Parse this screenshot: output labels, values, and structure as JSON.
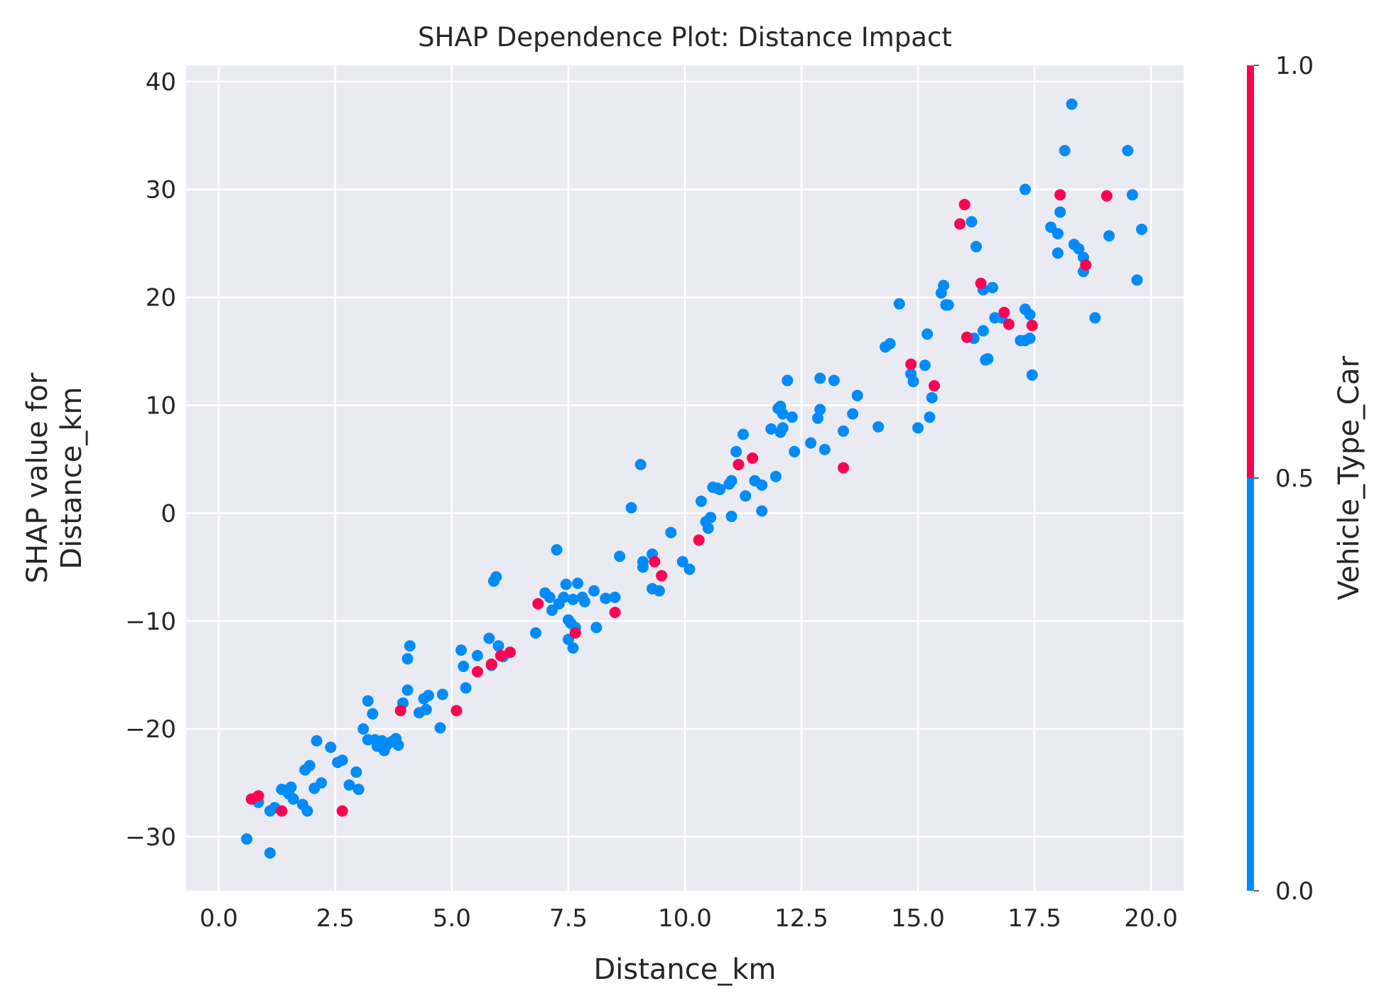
{
  "chart_data": {
    "type": "scatter",
    "title": "SHAP Dependence Plot: Distance Impact",
    "xlabel": "Distance_km",
    "ylabel_lines": [
      "SHAP value for",
      "Distance_km"
    ],
    "xlim": [
      -0.7,
      20.7
    ],
    "ylim": [
      -35,
      41.5
    ],
    "xticks": [
      0.0,
      2.5,
      5.0,
      7.5,
      10.0,
      12.5,
      15.0,
      17.5,
      20.0
    ],
    "xtick_labels": [
      "0.0",
      "2.5",
      "5.0",
      "7.5",
      "10.0",
      "12.5",
      "15.0",
      "17.5",
      "20.0"
    ],
    "yticks": [
      -30,
      -20,
      -10,
      0,
      10,
      20,
      30,
      40
    ],
    "ytick_labels": [
      "−30",
      "−20",
      "−10",
      "0",
      "10",
      "20",
      "30",
      "40"
    ],
    "grid": true,
    "colorbar": {
      "label": "Vehicle_Type_Car",
      "ticks": [
        0.0,
        0.5,
        1.0
      ],
      "tick_labels": [
        "0.0",
        "0.5",
        "1.0"
      ],
      "low_color": "#008bfb",
      "high_color": "#ff0052"
    },
    "colors": {
      "plot_background": "#eaeaf2",
      "grid": "#ffffff",
      "point_car": "#ff0052",
      "point_other": "#008bfb"
    },
    "series": [
      {
        "color_value": 0,
        "points": [
          [
            0.6,
            -30.2
          ],
          [
            1.1,
            -31.5
          ],
          [
            0.85,
            -26.8
          ],
          [
            1.1,
            -27.6
          ],
          [
            1.2,
            -27.3
          ],
          [
            1.35,
            -25.6
          ],
          [
            1.5,
            -26.0
          ],
          [
            1.55,
            -25.4
          ],
          [
            1.6,
            -26.5
          ],
          [
            1.8,
            -27.0
          ],
          [
            1.85,
            -23.8
          ],
          [
            1.95,
            -23.4
          ],
          [
            1.9,
            -27.6
          ],
          [
            2.05,
            -25.5
          ],
          [
            2.1,
            -21.1
          ],
          [
            2.2,
            -25.0
          ],
          [
            2.4,
            -21.7
          ],
          [
            2.55,
            -23.1
          ],
          [
            2.65,
            -22.9
          ],
          [
            2.8,
            -25.2
          ],
          [
            2.95,
            -24.0
          ],
          [
            3.0,
            -25.6
          ],
          [
            3.1,
            -20.0
          ],
          [
            3.2,
            -17.4
          ],
          [
            3.2,
            -21.0
          ],
          [
            3.3,
            -18.6
          ],
          [
            3.35,
            -21.0
          ],
          [
            3.4,
            -21.6
          ],
          [
            3.5,
            -21.1
          ],
          [
            3.55,
            -22.0
          ],
          [
            3.6,
            -21.5
          ],
          [
            3.7,
            -21.2
          ],
          [
            3.8,
            -20.9
          ],
          [
            3.85,
            -21.5
          ],
          [
            3.95,
            -17.6
          ],
          [
            4.05,
            -13.5
          ],
          [
            4.1,
            -12.3
          ],
          [
            4.05,
            -16.4
          ],
          [
            4.3,
            -18.5
          ],
          [
            4.4,
            -17.2
          ],
          [
            4.45,
            -18.2
          ],
          [
            4.5,
            -16.9
          ],
          [
            4.75,
            -19.9
          ],
          [
            4.8,
            -16.8
          ],
          [
            5.2,
            -12.7
          ],
          [
            5.25,
            -14.2
          ],
          [
            5.3,
            -16.2
          ],
          [
            5.55,
            -13.2
          ],
          [
            5.8,
            -11.6
          ],
          [
            5.85,
            -14.1
          ],
          [
            5.9,
            -6.3
          ],
          [
            5.95,
            -5.9
          ],
          [
            6.0,
            -12.3
          ],
          [
            6.1,
            -13.3
          ],
          [
            6.8,
            -11.1
          ],
          [
            7.0,
            -7.4
          ],
          [
            7.1,
            -7.8
          ],
          [
            7.15,
            -9.0
          ],
          [
            7.25,
            -3.4
          ],
          [
            7.3,
            -8.4
          ],
          [
            7.4,
            -7.8
          ],
          [
            7.45,
            -6.6
          ],
          [
            7.5,
            -9.9
          ],
          [
            7.55,
            -10.2
          ],
          [
            7.5,
            -11.7
          ],
          [
            7.6,
            -12.5
          ],
          [
            7.6,
            -8.0
          ],
          [
            7.65,
            -10.6
          ],
          [
            7.7,
            -6.5
          ],
          [
            7.8,
            -7.8
          ],
          [
            7.85,
            -8.2
          ],
          [
            8.05,
            -7.2
          ],
          [
            8.1,
            -10.6
          ],
          [
            8.3,
            -7.9
          ],
          [
            8.5,
            -7.8
          ],
          [
            8.6,
            -4.0
          ],
          [
            8.85,
            0.5
          ],
          [
            9.05,
            4.5
          ],
          [
            9.1,
            -4.5
          ],
          [
            9.1,
            -5.0
          ],
          [
            9.3,
            -3.8
          ],
          [
            9.3,
            -7.0
          ],
          [
            9.45,
            -7.2
          ],
          [
            9.7,
            -1.8
          ],
          [
            9.95,
            -4.5
          ],
          [
            10.1,
            -5.2
          ],
          [
            10.35,
            1.1
          ],
          [
            10.45,
            -0.8
          ],
          [
            10.5,
            -1.4
          ],
          [
            10.55,
            -0.4
          ],
          [
            10.6,
            2.4
          ],
          [
            10.7,
            2.3
          ],
          [
            10.75,
            2.2
          ],
          [
            11.0,
            3.0
          ],
          [
            10.95,
            2.7
          ],
          [
            11.0,
            -0.3
          ],
          [
            11.1,
            5.7
          ],
          [
            11.25,
            7.3
          ],
          [
            11.3,
            1.6
          ],
          [
            11.5,
            3.0
          ],
          [
            11.65,
            2.6
          ],
          [
            11.65,
            0.2
          ],
          [
            11.85,
            7.8
          ],
          [
            11.95,
            3.4
          ],
          [
            12.0,
            9.7
          ],
          [
            12.05,
            9.9
          ],
          [
            12.05,
            7.5
          ],
          [
            12.1,
            7.9
          ],
          [
            12.1,
            9.2
          ],
          [
            12.2,
            12.3
          ],
          [
            12.3,
            8.9
          ],
          [
            12.35,
            5.7
          ],
          [
            12.7,
            6.5
          ],
          [
            12.85,
            8.8
          ],
          [
            12.9,
            12.5
          ],
          [
            12.9,
            9.6
          ],
          [
            13.0,
            5.9
          ],
          [
            13.2,
            12.3
          ],
          [
            13.4,
            7.6
          ],
          [
            13.6,
            9.2
          ],
          [
            13.7,
            10.9
          ],
          [
            14.15,
            8.0
          ],
          [
            14.3,
            15.4
          ],
          [
            14.4,
            15.7
          ],
          [
            14.6,
            19.4
          ],
          [
            14.85,
            12.9
          ],
          [
            14.9,
            12.2
          ],
          [
            15.0,
            7.9
          ],
          [
            15.15,
            13.7
          ],
          [
            15.2,
            16.6
          ],
          [
            15.25,
            8.9
          ],
          [
            15.3,
            10.7
          ],
          [
            15.5,
            20.4
          ],
          [
            15.55,
            21.1
          ],
          [
            15.6,
            19.3
          ],
          [
            15.65,
            19.3
          ],
          [
            16.15,
            27.0
          ],
          [
            16.2,
            16.2
          ],
          [
            16.25,
            24.7
          ],
          [
            16.4,
            16.9
          ],
          [
            16.4,
            20.7
          ],
          [
            16.45,
            14.2
          ],
          [
            16.5,
            14.3
          ],
          [
            16.6,
            20.9
          ],
          [
            16.65,
            18.1
          ],
          [
            16.8,
            18.1
          ],
          [
            17.2,
            16.0
          ],
          [
            17.3,
            16.0
          ],
          [
            17.3,
            18.9
          ],
          [
            17.3,
            30.0
          ],
          [
            17.4,
            16.2
          ],
          [
            17.4,
            18.4
          ],
          [
            17.45,
            12.8
          ],
          [
            17.85,
            26.5
          ],
          [
            18.0,
            24.1
          ],
          [
            18.0,
            25.9
          ],
          [
            18.05,
            27.9
          ],
          [
            18.15,
            33.6
          ],
          [
            18.3,
            37.9
          ],
          [
            18.35,
            24.9
          ],
          [
            18.45,
            24.5
          ],
          [
            18.55,
            23.7
          ],
          [
            18.55,
            22.4
          ],
          [
            18.8,
            18.1
          ],
          [
            19.1,
            25.7
          ],
          [
            19.5,
            33.6
          ],
          [
            19.6,
            29.5
          ],
          [
            19.7,
            21.6
          ],
          [
            19.8,
            26.3
          ]
        ]
      },
      {
        "color_value": 1,
        "points": [
          [
            0.7,
            -26.5
          ],
          [
            0.85,
            -26.2
          ],
          [
            1.35,
            -27.6
          ],
          [
            2.65,
            -27.6
          ],
          [
            3.9,
            -18.3
          ],
          [
            5.1,
            -18.3
          ],
          [
            5.55,
            -14.7
          ],
          [
            5.85,
            -14.0
          ],
          [
            6.05,
            -13.2
          ],
          [
            6.25,
            -12.9
          ],
          [
            6.85,
            -8.4
          ],
          [
            7.65,
            -11.1
          ],
          [
            8.5,
            -9.2
          ],
          [
            9.35,
            -4.5
          ],
          [
            9.5,
            -5.8
          ],
          [
            10.3,
            -2.5
          ],
          [
            11.15,
            4.5
          ],
          [
            11.45,
            5.1
          ],
          [
            13.4,
            4.2
          ],
          [
            14.85,
            13.8
          ],
          [
            15.35,
            11.8
          ],
          [
            15.9,
            26.8
          ],
          [
            16.0,
            28.6
          ],
          [
            16.05,
            16.3
          ],
          [
            16.35,
            21.3
          ],
          [
            16.85,
            18.6
          ],
          [
            16.95,
            17.5
          ],
          [
            17.45,
            17.4
          ],
          [
            18.05,
            29.5
          ],
          [
            18.6,
            23.0
          ],
          [
            19.05,
            29.4
          ]
        ]
      }
    ]
  }
}
